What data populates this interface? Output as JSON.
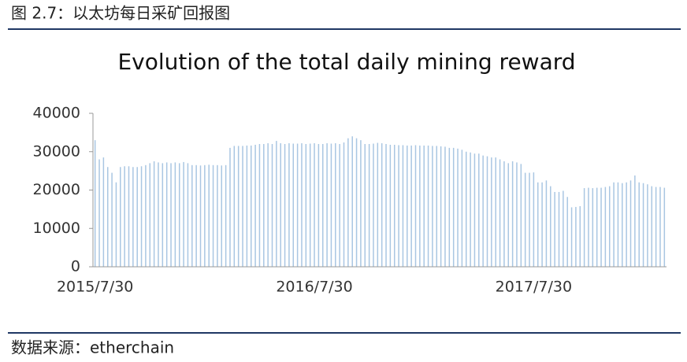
{
  "caption": "图 2.7：以太坊每日采矿回报图",
  "source": "数据来源：etherchain",
  "chart_data": {
    "type": "bar",
    "title": "Evolution of the total daily mining reward",
    "categories": [
      "2015/7/30",
      null,
      null,
      null,
      null,
      null,
      null,
      null,
      null,
      null,
      null,
      null,
      null,
      null,
      null,
      null,
      null,
      null,
      null,
      null,
      null,
      null,
      null,
      null,
      null,
      null,
      null,
      null,
      null,
      null,
      null,
      null,
      null,
      null,
      null,
      null,
      null,
      null,
      null,
      null,
      null,
      null,
      null,
      null,
      null,
      null,
      null,
      null,
      null,
      null,
      null,
      null,
      "2016/7/30",
      null,
      null,
      null,
      null,
      null,
      null,
      null,
      null,
      null,
      null,
      null,
      null,
      null,
      null,
      null,
      null,
      null,
      null,
      null,
      null,
      null,
      null,
      null,
      null,
      null,
      null,
      null,
      null,
      null,
      null,
      null,
      null,
      null,
      null,
      null,
      null,
      null,
      null,
      null,
      null,
      null,
      null,
      null,
      null,
      null,
      null,
      null,
      null,
      null,
      null,
      null,
      "2017/7/30",
      null,
      null,
      null,
      null,
      null,
      null,
      null,
      null,
      null,
      null,
      null,
      null,
      null,
      null,
      null,
      null,
      null,
      null,
      null,
      null,
      null,
      null,
      null,
      null,
      null,
      null,
      null,
      null,
      null,
      null,
      null
    ],
    "values": [
      33000,
      28000,
      28500,
      26000,
      24500,
      22000,
      26000,
      26200,
      26200,
      26000,
      26000,
      26200,
      26500,
      27000,
      27500,
      27200,
      27000,
      27200,
      27000,
      27200,
      27000,
      27300,
      27000,
      26500,
      26500,
      26400,
      26500,
      26600,
      26500,
      26500,
      26400,
      26500,
      31000,
      31500,
      31500,
      31500,
      31600,
      31600,
      31800,
      32000,
      32000,
      32200,
      32000,
      32800,
      32200,
      32000,
      32200,
      32100,
      32100,
      32200,
      32000,
      32100,
      32200,
      32000,
      32000,
      32200,
      32100,
      32200,
      32000,
      32400,
      33500,
      34000,
      33500,
      33000,
      32000,
      32000,
      32100,
      32300,
      32200,
      32000,
      31800,
      31800,
      31700,
      31700,
      31600,
      31600,
      31700,
      31600,
      31600,
      31600,
      31500,
      31500,
      31400,
      31300,
      31000,
      31000,
      30800,
      30500,
      30000,
      29800,
      29500,
      29500,
      29000,
      28800,
      28500,
      28500,
      28000,
      27500,
      27000,
      27500,
      27200,
      26800,
      24500,
      24500,
      24600,
      22000,
      22000,
      22500,
      21000,
      19500,
      19500,
      19800,
      18200,
      15500,
      15600,
      15800,
      20500,
      20600,
      20500,
      20600,
      20600,
      20800,
      21000,
      22000,
      22000,
      21800,
      22000,
      22500,
      23800,
      22000,
      21800,
      21500,
      21000,
      20800,
      20800,
      20600
    ],
    "color": "#a9c6e2",
    "ylim": [
      0,
      40000
    ],
    "yticks": [
      0,
      10000,
      20000,
      30000,
      40000
    ],
    "grid": false
  }
}
